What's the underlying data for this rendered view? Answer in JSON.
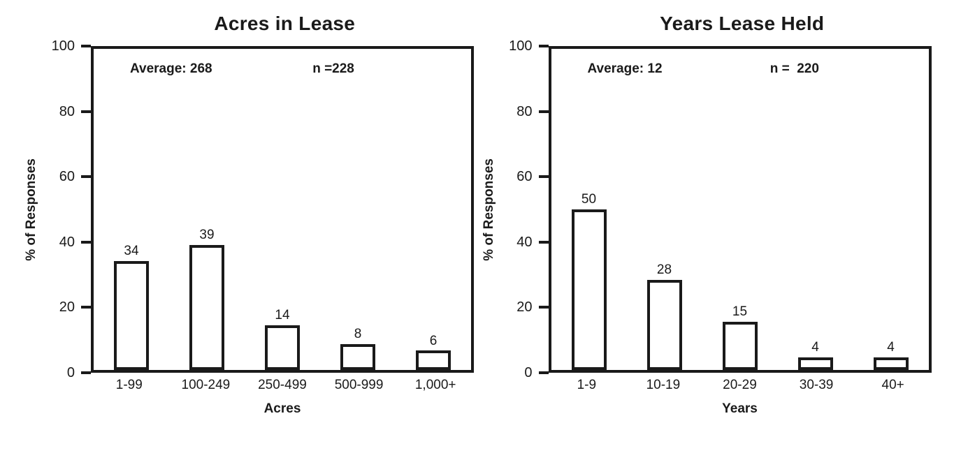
{
  "page": {
    "background": "#ffffff",
    "text_color": "#1a1a1a"
  },
  "chart_data": [
    {
      "type": "bar",
      "title": "Acres in Lease",
      "ylabel": "% of Responses",
      "xlabel": "Acres",
      "categories": [
        "1-99",
        "100-249",
        "250-499",
        "500-999",
        "1,000+"
      ],
      "values": [
        34,
        39,
        14,
        8,
        6
      ],
      "annotations": {
        "average": "Average: 268",
        "n": "n =228"
      },
      "ylim": [
        0,
        100
      ],
      "yticks": [
        0,
        20,
        40,
        60,
        80,
        100
      ],
      "grid": false,
      "legend": "none",
      "bar_fill": "#ffffff",
      "bar_border": "#1a1a1a"
    },
    {
      "type": "bar",
      "title": "Years Lease Held",
      "ylabel": "% of Responses",
      "xlabel": "Years",
      "categories": [
        "1-9",
        "10-19",
        "20-29",
        "30-39",
        "40+"
      ],
      "values": [
        50,
        28,
        15,
        4,
        4
      ],
      "annotations": {
        "average": "Average: 12",
        "n": "n =  220"
      },
      "ylim": [
        0,
        100
      ],
      "yticks": [
        0,
        20,
        40,
        60,
        80,
        100
      ],
      "grid": false,
      "legend": "none",
      "bar_fill": "#ffffff",
      "bar_border": "#1a1a1a"
    }
  ]
}
